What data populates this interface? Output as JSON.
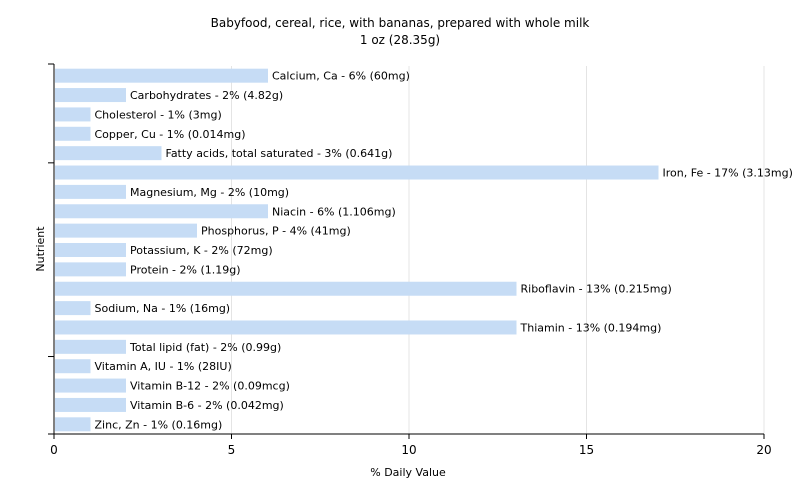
{
  "chart_data": {
    "type": "bar",
    "orientation": "horizontal",
    "title": "Babyfood, cereal, rice, with bananas, prepared with whole milk",
    "subtitle": "1 oz (28.35g)",
    "xlabel": "% Daily Value",
    "ylabel": "Nutrient",
    "xlim": [
      0,
      20
    ],
    "xticks": [
      "0",
      "5",
      "10",
      "15",
      "20"
    ],
    "grid": "vertical",
    "bar_color": "#c6dcf5",
    "categories": [
      "Calcium, Ca",
      "Carbohydrates",
      "Cholesterol",
      "Copper, Cu",
      "Fatty acids, total saturated",
      "Iron, Fe",
      "Magnesium, Mg",
      "Niacin",
      "Phosphorus, P",
      "Potassium, K",
      "Protein",
      "Riboflavin",
      "Sodium, Na",
      "Thiamin",
      "Total lipid (fat)",
      "Vitamin A, IU",
      "Vitamin B-12",
      "Vitamin B-6",
      "Zinc, Zn"
    ],
    "values": [
      6,
      2,
      1,
      1,
      3,
      17,
      2,
      6,
      4,
      2,
      2,
      13,
      1,
      13,
      2,
      1,
      2,
      2,
      1
    ],
    "labels": [
      "Calcium, Ca - 6% (60mg)",
      "Carbohydrates - 2% (4.82g)",
      "Cholesterol - 1% (3mg)",
      "Copper, Cu - 1% (0.014mg)",
      "Fatty acids, total saturated - 3% (0.641g)",
      "Iron, Fe - 17% (3.13mg)",
      "Magnesium, Mg - 2% (10mg)",
      "Niacin - 6% (1.106mg)",
      "Phosphorus, P - 4% (41mg)",
      "Potassium, K - 2% (72mg)",
      "Protein - 2% (1.19g)",
      "Riboflavin - 13% (0.215mg)",
      "Sodium, Na - 1% (16mg)",
      "Thiamin - 13% (0.194mg)",
      "Total lipid (fat) - 2% (0.99g)",
      "Vitamin A, IU - 1% (28IU)",
      "Vitamin B-12 - 2% (0.09mcg)",
      "Vitamin B-6 - 2% (0.042mg)",
      "Zinc, Zn - 1% (0.16mg)"
    ]
  }
}
